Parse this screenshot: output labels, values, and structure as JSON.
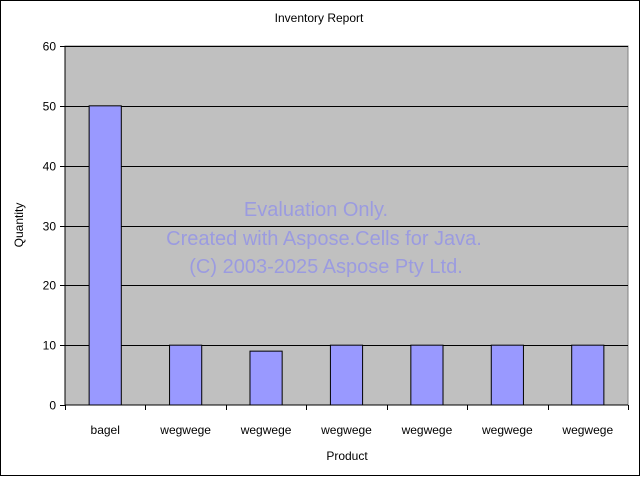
{
  "chart_data": {
    "type": "bar",
    "title": "Inventory Report",
    "xlabel": "Product",
    "ylabel": "Quantity",
    "categories": [
      "bagel",
      "wegwege",
      "wegwege",
      "wegwege",
      "wegwege",
      "wegwege",
      "wegwege"
    ],
    "values": [
      50,
      10,
      9,
      10,
      10,
      10,
      10
    ],
    "ylim": [
      0,
      60
    ],
    "yticks": [
      0,
      10,
      20,
      30,
      40,
      50,
      60
    ],
    "grid": true,
    "legend": "none",
    "colors": {
      "bar_fill": "#9999ff",
      "bar_stroke": "#000000",
      "plot_background": "#c0c0c0",
      "gridline": "#000000"
    }
  },
  "watermark": {
    "line1": "Evaluation Only.",
    "line2": "Created with Aspose.Cells for Java.",
    "line3": "(C) 2003-2025 Aspose Pty Ltd."
  }
}
